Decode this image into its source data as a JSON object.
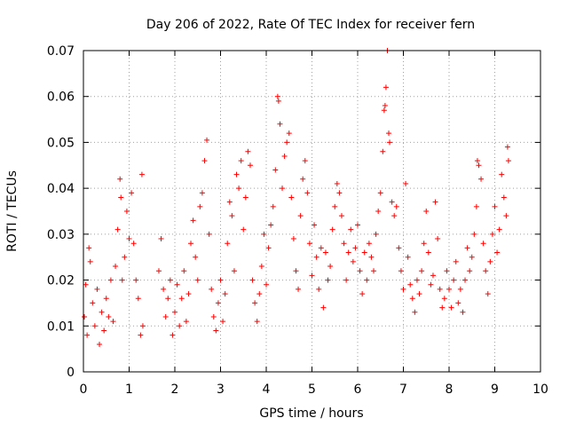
{
  "chart_data": {
    "type": "scatter",
    "title": "Day 206 of 2022, Rate Of TEC Index for receiver fern",
    "xlabel": "GPS time / hours",
    "ylabel": "ROTI / TECUs",
    "xlim": [
      0,
      10
    ],
    "ylim": [
      0,
      0.07
    ],
    "x_ticks": [
      "0",
      "1",
      "2",
      "3",
      "4",
      "5",
      "6",
      "7",
      "8",
      "9",
      "10"
    ],
    "y_ticks": [
      "0",
      "0.01",
      "0.02",
      "0.03",
      "0.04",
      "0.05",
      "0.06",
      "0.07"
    ],
    "grid": true,
    "marker": "+",
    "color": "#ff0000",
    "data_gap_hours": [
      1.3,
      1.6
    ],
    "series": [
      {
        "points": [
          [
            0.02,
            0.012
          ],
          [
            0.05,
            0.019
          ],
          [
            0.08,
            0.008
          ],
          [
            0.12,
            0.027
          ],
          [
            0.15,
            0.024
          ],
          [
            0.2,
            0.015
          ],
          [
            0.25,
            0.01
          ],
          [
            0.3,
            0.018
          ],
          [
            0.35,
            0.006
          ],
          [
            0.4,
            0.013
          ],
          [
            0.45,
            0.009
          ],
          [
            0.5,
            0.016
          ],
          [
            0.55,
            0.012
          ],
          [
            0.6,
            0.02
          ],
          [
            0.65,
            0.011
          ],
          [
            0.7,
            0.023
          ],
          [
            0.75,
            0.031
          ],
          [
            0.8,
            0.042
          ],
          [
            0.82,
            0.038
          ],
          [
            0.85,
            0.02
          ],
          [
            0.9,
            0.025
          ],
          [
            0.95,
            0.035
          ],
          [
            1.0,
            0.029
          ],
          [
            1.05,
            0.039
          ],
          [
            1.1,
            0.028
          ],
          [
            1.15,
            0.02
          ],
          [
            1.2,
            0.016
          ],
          [
            1.25,
            0.008
          ],
          [
            1.28,
            0.043
          ],
          [
            1.3,
            0.01
          ],
          [
            1.65,
            0.022
          ],
          [
            1.7,
            0.029
          ],
          [
            1.75,
            0.018
          ],
          [
            1.8,
            0.012
          ],
          [
            1.85,
            0.016
          ],
          [
            1.9,
            0.02
          ],
          [
            1.95,
            0.008
          ],
          [
            2.0,
            0.013
          ],
          [
            2.05,
            0.019
          ],
          [
            2.1,
            0.01
          ],
          [
            2.15,
            0.016
          ],
          [
            2.2,
            0.022
          ],
          [
            2.25,
            0.011
          ],
          [
            2.3,
            0.017
          ],
          [
            2.35,
            0.028
          ],
          [
            2.4,
            0.033
          ],
          [
            2.45,
            0.025
          ],
          [
            2.5,
            0.02
          ],
          [
            2.55,
            0.036
          ],
          [
            2.6,
            0.039
          ],
          [
            2.65,
            0.046
          ],
          [
            2.7,
            0.0505
          ],
          [
            2.75,
            0.03
          ],
          [
            2.8,
            0.018
          ],
          [
            2.85,
            0.012
          ],
          [
            2.9,
            0.009
          ],
          [
            2.95,
            0.015
          ],
          [
            3.0,
            0.02
          ],
          [
            3.05,
            0.011
          ],
          [
            3.1,
            0.017
          ],
          [
            3.15,
            0.028
          ],
          [
            3.2,
            0.037
          ],
          [
            3.25,
            0.034
          ],
          [
            3.3,
            0.022
          ],
          [
            3.35,
            0.043
          ],
          [
            3.4,
            0.04
          ],
          [
            3.45,
            0.046
          ],
          [
            3.5,
            0.031
          ],
          [
            3.55,
            0.038
          ],
          [
            3.6,
            0.048
          ],
          [
            3.65,
            0.045
          ],
          [
            3.7,
            0.02
          ],
          [
            3.75,
            0.015
          ],
          [
            3.8,
            0.011
          ],
          [
            3.85,
            0.017
          ],
          [
            3.9,
            0.023
          ],
          [
            3.95,
            0.03
          ],
          [
            4.0,
            0.019
          ],
          [
            4.05,
            0.027
          ],
          [
            4.1,
            0.032
          ],
          [
            4.15,
            0.036
          ],
          [
            4.2,
            0.044
          ],
          [
            4.25,
            0.06
          ],
          [
            4.27,
            0.059
          ],
          [
            4.3,
            0.054
          ],
          [
            4.35,
            0.04
          ],
          [
            4.4,
            0.047
          ],
          [
            4.45,
            0.05
          ],
          [
            4.5,
            0.052
          ],
          [
            4.55,
            0.038
          ],
          [
            4.6,
            0.029
          ],
          [
            4.65,
            0.022
          ],
          [
            4.7,
            0.018
          ],
          [
            4.75,
            0.034
          ],
          [
            4.8,
            0.042
          ],
          [
            4.85,
            0.046
          ],
          [
            4.9,
            0.039
          ],
          [
            4.95,
            0.028
          ],
          [
            5.0,
            0.021
          ],
          [
            5.05,
            0.032
          ],
          [
            5.1,
            0.025
          ],
          [
            5.15,
            0.018
          ],
          [
            5.2,
            0.027
          ],
          [
            5.25,
            0.014
          ],
          [
            5.3,
            0.026
          ],
          [
            5.35,
            0.02
          ],
          [
            5.4,
            0.023
          ],
          [
            5.45,
            0.031
          ],
          [
            5.5,
            0.036
          ],
          [
            5.55,
            0.041
          ],
          [
            5.6,
            0.039
          ],
          [
            5.65,
            0.034
          ],
          [
            5.7,
            0.028
          ],
          [
            5.75,
            0.02
          ],
          [
            5.8,
            0.026
          ],
          [
            5.85,
            0.031
          ],
          [
            5.9,
            0.024
          ],
          [
            5.95,
            0.027
          ],
          [
            6.0,
            0.032
          ],
          [
            6.05,
            0.022
          ],
          [
            6.1,
            0.017
          ],
          [
            6.15,
            0.026
          ],
          [
            6.2,
            0.02
          ],
          [
            6.25,
            0.028
          ],
          [
            6.3,
            0.025
          ],
          [
            6.35,
            0.022
          ],
          [
            6.4,
            0.03
          ],
          [
            6.45,
            0.035
          ],
          [
            6.5,
            0.039
          ],
          [
            6.55,
            0.048
          ],
          [
            6.58,
            0.057
          ],
          [
            6.6,
            0.058
          ],
          [
            6.62,
            0.062
          ],
          [
            6.65,
            0.07
          ],
          [
            6.68,
            0.052
          ],
          [
            6.7,
            0.05
          ],
          [
            6.75,
            0.037
          ],
          [
            6.8,
            0.034
          ],
          [
            6.85,
            0.036
          ],
          [
            6.9,
            0.027
          ],
          [
            6.95,
            0.022
          ],
          [
            7.0,
            0.018
          ],
          [
            7.05,
            0.041
          ],
          [
            7.1,
            0.025
          ],
          [
            7.15,
            0.019
          ],
          [
            7.2,
            0.016
          ],
          [
            7.25,
            0.013
          ],
          [
            7.3,
            0.02
          ],
          [
            7.35,
            0.017
          ],
          [
            7.4,
            0.022
          ],
          [
            7.45,
            0.028
          ],
          [
            7.5,
            0.035
          ],
          [
            7.55,
            0.026
          ],
          [
            7.6,
            0.019
          ],
          [
            7.65,
            0.021
          ],
          [
            7.7,
            0.037
          ],
          [
            7.75,
            0.029
          ],
          [
            7.8,
            0.018
          ],
          [
            7.85,
            0.014
          ],
          [
            7.9,
            0.016
          ],
          [
            7.95,
            0.022
          ],
          [
            8.0,
            0.018
          ],
          [
            8.05,
            0.014
          ],
          [
            8.1,
            0.02
          ],
          [
            8.15,
            0.024
          ],
          [
            8.2,
            0.015
          ],
          [
            8.25,
            0.018
          ],
          [
            8.3,
            0.013
          ],
          [
            8.35,
            0.02
          ],
          [
            8.4,
            0.027
          ],
          [
            8.45,
            0.022
          ],
          [
            8.5,
            0.025
          ],
          [
            8.55,
            0.03
          ],
          [
            8.6,
            0.036
          ],
          [
            8.62,
            0.046
          ],
          [
            8.65,
            0.045
          ],
          [
            8.7,
            0.042
          ],
          [
            8.75,
            0.028
          ],
          [
            8.8,
            0.022
          ],
          [
            8.85,
            0.017
          ],
          [
            8.9,
            0.024
          ],
          [
            8.95,
            0.03
          ],
          [
            9.0,
            0.036
          ],
          [
            9.05,
            0.026
          ],
          [
            9.1,
            0.031
          ],
          [
            9.15,
            0.043
          ],
          [
            9.2,
            0.038
          ],
          [
            9.25,
            0.034
          ],
          [
            9.28,
            0.049
          ],
          [
            9.3,
            0.046
          ]
        ]
      }
    ]
  }
}
